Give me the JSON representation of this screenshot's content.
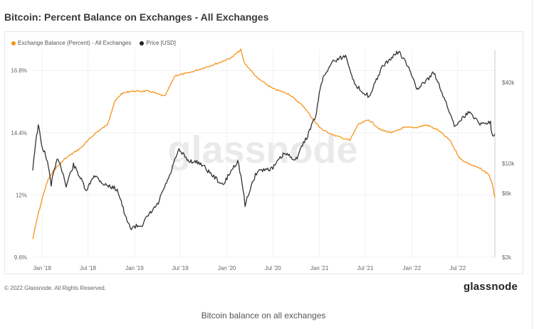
{
  "title": "Bitcoin: Percent Balance on Exchanges - All Exchanges",
  "footer": {
    "copyright": "© 2022 Glassnode. All Rights Reserved.",
    "logo": "glassnode"
  },
  "watermark": "glassnode",
  "caption": "Bitcoin balance on all exchanges",
  "colors": {
    "balance": "#f7931a",
    "price": "#333333"
  },
  "chart_data": {
    "type": "line",
    "title": "Bitcoin: Percent Balance on Exchanges - All Exchanges",
    "xlabel": "",
    "legend_position": "top-left",
    "grid": true,
    "x_ticks": [
      "Jan '18",
      "Jul '18",
      "Jan '19",
      "Jul '19",
      "Jan '20",
      "Jul '20",
      "Jan '21",
      "Jul '21",
      "Jan '22",
      "Jul '22"
    ],
    "y_left": {
      "label": "",
      "ticks": [
        "9.6%",
        "12%",
        "14.4%",
        "16.8%"
      ],
      "ylim": [
        9.6,
        17.6
      ]
    },
    "y_right": {
      "label": "",
      "scale": "log",
      "ticks": [
        "$2k",
        "$6k",
        "$10k",
        "$40k"
      ],
      "ylim": [
        2000,
        70000
      ]
    },
    "x_range": [
      "2017-11-25",
      "2022-11-25"
    ],
    "series": [
      {
        "name": "Exchange Balance (Percent) - All Exchanges",
        "axis": "left",
        "points": [
          [
            "2017-11-25",
            10.3
          ],
          [
            "2017-12-15",
            11.2
          ],
          [
            "2018-01-05",
            12.0
          ],
          [
            "2018-01-25",
            12.6
          ],
          [
            "2018-02-20",
            13.0
          ],
          [
            "2018-04-01",
            13.4
          ],
          [
            "2018-06-01",
            13.8
          ],
          [
            "2018-08-01",
            14.4
          ],
          [
            "2018-09-15",
            14.7
          ],
          [
            "2018-10-15",
            15.6
          ],
          [
            "2018-11-10",
            15.9
          ],
          [
            "2018-12-15",
            16.0
          ],
          [
            "2019-03-01",
            16.0
          ],
          [
            "2019-05-01",
            15.8
          ],
          [
            "2019-06-10",
            16.6
          ],
          [
            "2019-08-01",
            16.7
          ],
          [
            "2019-10-01",
            16.9
          ],
          [
            "2019-12-01",
            17.1
          ],
          [
            "2020-01-20",
            17.3
          ],
          [
            "2020-02-25",
            17.6
          ],
          [
            "2020-03-10",
            17.1
          ],
          [
            "2020-05-01",
            16.5
          ],
          [
            "2020-07-01",
            16.1
          ],
          [
            "2020-09-01",
            15.9
          ],
          [
            "2020-11-01",
            15.4
          ],
          [
            "2020-12-15",
            14.8
          ],
          [
            "2021-01-15",
            14.5
          ],
          [
            "2021-03-01",
            14.3
          ],
          [
            "2021-05-01",
            14.1
          ],
          [
            "2021-06-01",
            14.7
          ],
          [
            "2021-07-15",
            14.9
          ],
          [
            "2021-09-01",
            14.5
          ],
          [
            "2021-10-15",
            14.4
          ],
          [
            "2021-12-01",
            14.6
          ],
          [
            "2022-01-15",
            14.6
          ],
          [
            "2022-03-01",
            14.7
          ],
          [
            "2022-04-15",
            14.5
          ],
          [
            "2022-06-01",
            14.1
          ],
          [
            "2022-07-10",
            13.4
          ],
          [
            "2022-08-15",
            13.2
          ],
          [
            "2022-10-01",
            13.0
          ],
          [
            "2022-11-01",
            12.8
          ],
          [
            "2022-11-15",
            12.4
          ],
          [
            "2022-11-25",
            11.9
          ]
        ]
      },
      {
        "name": "Price [USD]",
        "axis": "right",
        "points": [
          [
            "2017-11-25",
            9000
          ],
          [
            "2017-12-17",
            19000
          ],
          [
            "2017-12-30",
            13500
          ],
          [
            "2018-01-15",
            11500
          ],
          [
            "2018-02-06",
            7000
          ],
          [
            "2018-03-05",
            11000
          ],
          [
            "2018-04-06",
            6700
          ],
          [
            "2018-05-05",
            9700
          ],
          [
            "2018-06-25",
            6100
          ],
          [
            "2018-07-25",
            8200
          ],
          [
            "2018-09-01",
            7000
          ],
          [
            "2018-10-25",
            6400
          ],
          [
            "2018-11-25",
            4000
          ],
          [
            "2018-12-15",
            3300
          ],
          [
            "2019-02-01",
            3500
          ],
          [
            "2019-04-05",
            5000
          ],
          [
            "2019-05-20",
            8000
          ],
          [
            "2019-06-26",
            12500
          ],
          [
            "2019-08-01",
            10500
          ],
          [
            "2019-09-20",
            10000
          ],
          [
            "2019-10-25",
            8500
          ],
          [
            "2019-12-17",
            6800
          ],
          [
            "2020-02-13",
            10400
          ],
          [
            "2020-03-13",
            4800
          ],
          [
            "2020-05-01",
            8800
          ],
          [
            "2020-07-01",
            9200
          ],
          [
            "2020-08-15",
            11800
          ],
          [
            "2020-10-01",
            10700
          ],
          [
            "2020-11-15",
            16000
          ],
          [
            "2020-12-20",
            23000
          ],
          [
            "2021-01-08",
            40000
          ],
          [
            "2021-02-21",
            57000
          ],
          [
            "2021-04-14",
            63000
          ],
          [
            "2021-05-20",
            38000
          ],
          [
            "2021-07-20",
            31000
          ],
          [
            "2021-09-07",
            52000
          ],
          [
            "2021-11-10",
            68000
          ],
          [
            "2022-01-24",
            35000
          ],
          [
            "2022-03-29",
            47000
          ],
          [
            "2022-05-12",
            29000
          ],
          [
            "2022-06-18",
            19000
          ],
          [
            "2022-08-15",
            24000
          ],
          [
            "2022-10-01",
            19500
          ],
          [
            "2022-11-08",
            20500
          ],
          [
            "2022-11-12",
            16500
          ],
          [
            "2022-11-25",
            16500
          ]
        ]
      }
    ]
  }
}
